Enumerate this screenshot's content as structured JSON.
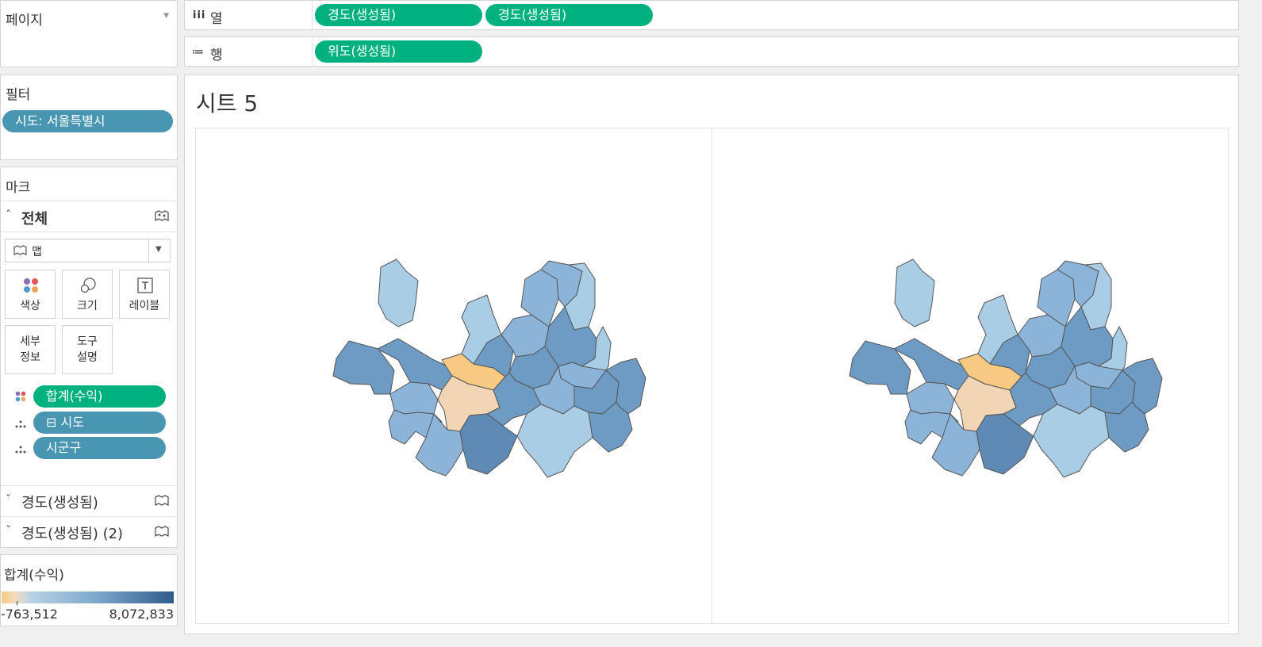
{
  "pages_card": {
    "title": "페이지"
  },
  "filters_card": {
    "title": "필터",
    "filter_pill": "시도: 서울특별시"
  },
  "marks_card": {
    "title": "마크",
    "section": "전체",
    "mark_type": "맵",
    "buttons": {
      "color": "색상",
      "size": "크기",
      "label": "레이블",
      "detail_line1": "세부",
      "detail_line2": "정보",
      "tooltip_line1": "도구",
      "tooltip_line2": "설명"
    },
    "fields": [
      {
        "name": "합계(수익)",
        "kind": "color"
      },
      {
        "name": "⊟ 시도",
        "kind": "detail"
      },
      {
        "name": "시군구",
        "kind": "detail"
      }
    ],
    "collapsed_sections": [
      "경도(생성됨)",
      "경도(생성됨) (2)"
    ]
  },
  "legend": {
    "title": "합계(수익)",
    "min_label": "-763,512",
    "max_label": "8,072,833",
    "min": -763512,
    "max": 8072833,
    "color_low": "#f8c982",
    "color_high": "#2e5b8a"
  },
  "shelves": {
    "columns_label": "열",
    "rows_label": "행",
    "columns_pills": [
      "경도(생성됨)",
      "경도(생성됨)"
    ],
    "rows_pills": [
      "위도(생성됨)"
    ]
  },
  "sheet": {
    "title": "시트 5"
  },
  "colors": {
    "pill_green": "#00b180",
    "pill_blue": "#4996b2"
  }
}
